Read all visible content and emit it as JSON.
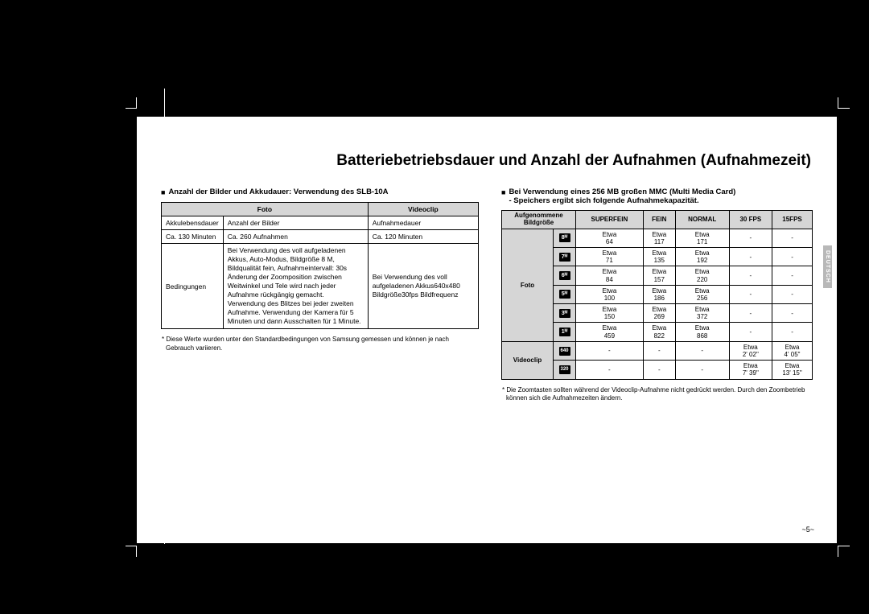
{
  "colors": {
    "page_bg": "#ffffff",
    "body_bg": "#000000",
    "header_bg": "#d6d6d6",
    "text": "#000000",
    "icon_bg": "#000000",
    "icon_text": "#ffffff",
    "sidetab_bg": "#b8b8b8"
  },
  "page_title": "Batteriebetriebsdauer und Anzahl der Aufnahmen (Aufnahmezeit)",
  "side_tab": "DEUTSCH",
  "page_number": "~5~",
  "left": {
    "heading": "Anzahl der Bilder und Akkudauer: Verwendung des SLB-10A",
    "table": {
      "headers": [
        "",
        "Foto",
        "Videoclip"
      ],
      "row1": [
        "Akkulebensdauer",
        "Anzahl der Bilder",
        "Aufnahmedauer"
      ],
      "row2": [
        "Ca. 130 Minuten",
        "Ca. 260 Aufnahmen",
        "Ca. 120 Minuten"
      ],
      "conditions_label": "Bedingungen",
      "conditions_foto": "Bei Verwendung des voll aufgeladenen Akkus, Auto-Modus, Bildgröße 8 M, Bildqualität fein, Aufnahmeintervall: 30s Änderung der Zoomposition zwischen Weitwinkel und Tele wird nach jeder Aufnahme rückgängig gemacht. Verwendung des Blitzes bei jeder zweiten Aufnahme. Verwendung der Kamera für 5 Minuten und dann Ausschalten für 1 Minute.",
      "conditions_video": "Bei Verwendung des voll aufgeladenen Akkus640x480 Bildgröße30fps Bildfrequenz"
    },
    "footnote": "* Diese Werte wurden unter den Standardbedingungen von Samsung gemessen und können je nach Gebrauch variieren."
  },
  "right": {
    "heading_line1": "Bei Verwendung eines 256 MB großen MMC (Multi Media Card)",
    "heading_line2": "- Speichers ergibt sich folgende Aufnahmekapazität.",
    "table": {
      "col_headers": [
        "Aufgenommene Bildgröße",
        "SUPERFEIN",
        "FEIN",
        "NORMAL",
        "30 FPS",
        "15FPS"
      ],
      "rowgroups": [
        {
          "label": "Foto",
          "rows": [
            {
              "icon": "8ᴹ",
              "vals": [
                "Etwa\n64",
                "Etwa\n117",
                "Etwa\n171",
                "-",
                "-"
              ]
            },
            {
              "icon": "7ᴹ",
              "vals": [
                "Etwa\n71",
                "Etwa\n135",
                "Etwa\n192",
                "-",
                "-"
              ]
            },
            {
              "icon": "6ᴹ",
              "vals": [
                "Etwa\n84",
                "Etwa\n157",
                "Etwa\n220",
                "-",
                "-"
              ]
            },
            {
              "icon": "5ᴹ",
              "vals": [
                "Etwa\n100",
                "Etwa\n186",
                "Etwa\n256",
                "-",
                "-"
              ]
            },
            {
              "icon": "3ᴹ",
              "vals": [
                "Etwa\n150",
                "Etwa\n269",
                "Etwa\n372",
                "-",
                "-"
              ]
            },
            {
              "icon": "1ᴹ",
              "vals": [
                "Etwa\n459",
                "Etwa\n822",
                "Etwa\n868",
                "-",
                "-"
              ]
            }
          ]
        },
        {
          "label": "Videoclip",
          "rows": [
            {
              "icon": "640",
              "vals": [
                "-",
                "-",
                "-",
                "Etwa\n2' 02\"",
                "Etwa\n4' 05\""
              ]
            },
            {
              "icon": "320",
              "vals": [
                "-",
                "-",
                "-",
                "Etwa\n7' 39\"",
                "Etwa\n13' 15\""
              ]
            }
          ]
        }
      ]
    },
    "footnote": "* Die Zoomtasten sollten während der Videoclip-Aufnahme nicht gedrückt werden. Durch den Zoombetrieb können sich die Aufnahmezeiten ändern."
  }
}
